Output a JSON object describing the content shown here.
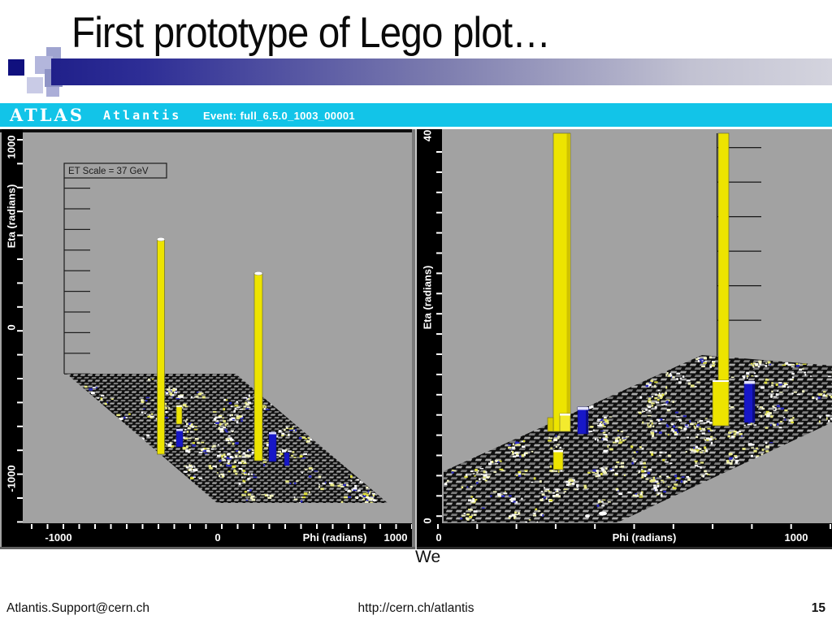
{
  "slide": {
    "title": "First prototype of Lego plot…",
    "partial_text": "We",
    "footer": {
      "email": "Atlantis.Support@cern.ch",
      "url": "http://cern.ch/atlantis",
      "page_number": "15"
    }
  },
  "atlantis_header": {
    "experiment": "ATLAS",
    "app_name": "Atlantis",
    "event": "Event: full_6.5.0_1003_00001"
  },
  "left_plot": {
    "scale_label": "ET Scale = 37 GeV",
    "y_axis": {
      "label": "Eta (radians)",
      "tick_top": "1000",
      "tick_mid": "0",
      "tick_bottom": "-1000"
    },
    "x_axis": {
      "label": "Phi (radians)",
      "tick_left": "-1000",
      "tick_mid": "0",
      "tick_right": "1000"
    }
  },
  "right_plot": {
    "y_axis": {
      "label": "Eta (radians)",
      "tick_top": "40",
      "tick_bottom": "0"
    },
    "x_axis": {
      "label": "Phi (radians)",
      "tick_left": "0",
      "tick_right": "1000"
    }
  },
  "colors": {
    "header_cyan": "#12c4e8",
    "panel_gray": "#a2a2a2",
    "tower_yellow": "#ede400",
    "tower_blue": "#1717c8",
    "accent_navy": "#10107e"
  }
}
